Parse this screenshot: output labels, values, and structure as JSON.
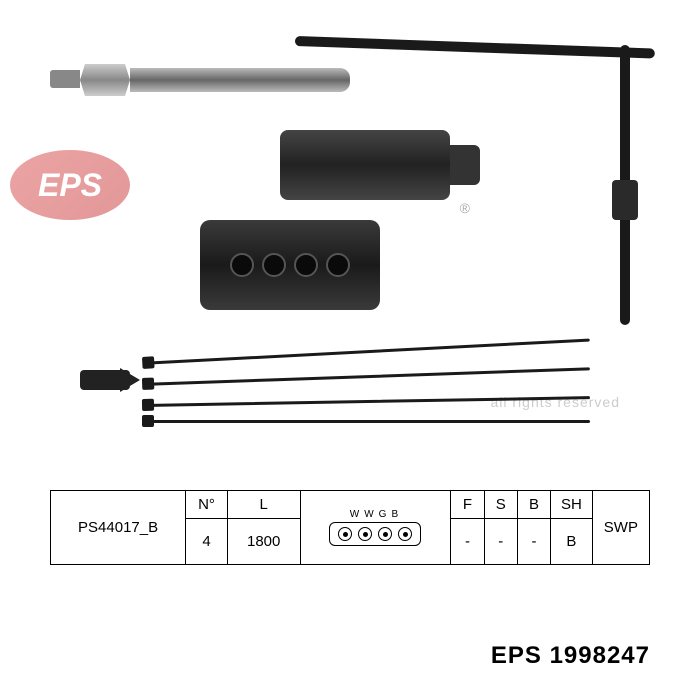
{
  "product": {
    "part_number": "PS44017_B",
    "wire_count": 4,
    "cable_length_mm": 1800,
    "pin_labels": [
      "W",
      "W",
      "G",
      "B"
    ],
    "flags": {
      "F": "-",
      "S": "-",
      "B": "-",
      "SH": "B"
    },
    "swp": "SWP"
  },
  "table_headers": {
    "n": "N°",
    "l": "L",
    "f": "F",
    "s": "S",
    "b": "B",
    "sh": "SH"
  },
  "brand": {
    "name": "EPS",
    "code": "1998247",
    "combined": "EPS 1998247"
  },
  "watermark": {
    "logo_text": "EPS",
    "rights": "all rights reserved",
    "reg": "®"
  },
  "colors": {
    "border": "#000000",
    "background": "#ffffff",
    "text": "#000000",
    "watermark_logo": "#d94a4a",
    "watermark_text": "#cccccc",
    "cable": "#1a1a1a"
  }
}
